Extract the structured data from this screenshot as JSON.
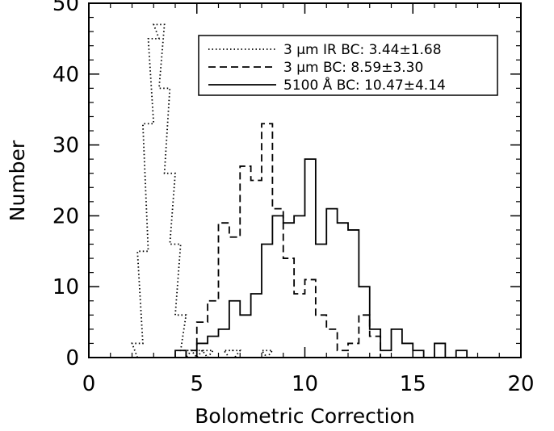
{
  "chart_data": {
    "type": "histogram",
    "xlabel": "Bolometric Correction",
    "ylabel": "Number",
    "xlim": [
      0,
      20
    ],
    "ylim": [
      0,
      50
    ],
    "xticks": [
      0,
      5,
      10,
      15,
      20
    ],
    "yticks": [
      0,
      10,
      20,
      30,
      40,
      50
    ],
    "bin_width": 0.5,
    "legend_position": "top-right",
    "series": [
      {
        "name": "3 μm IR BC: 3.44±1.68",
        "line_style": "dotted",
        "bin_starts": [
          1.75,
          2.0,
          2.25,
          2.5,
          2.75,
          3.0,
          3.25,
          3.5,
          3.75,
          4.0,
          4.25,
          4.5,
          4.75,
          5.0,
          5.25,
          5.5,
          5.75,
          6.0,
          6.25,
          6.5,
          6.75,
          7.0,
          7.25,
          7.5,
          7.75,
          8.0,
          8.25
        ],
        "values": [
          0,
          2,
          15,
          33,
          45,
          47,
          38,
          26,
          16,
          6,
          1,
          0,
          1,
          0,
          1,
          0,
          0,
          0,
          1,
          1,
          0,
          0,
          0,
          0,
          0,
          1,
          0
        ]
      },
      {
        "name": "3 μm BC: 8.59±3.30",
        "line_style": "dashed",
        "bin_starts": [
          4.0,
          4.5,
          5.0,
          5.5,
          6.0,
          6.5,
          7.0,
          7.5,
          8.0,
          8.5,
          9.0,
          9.5,
          10.0,
          10.5,
          11.0,
          11.5,
          12.0,
          12.5,
          13.0,
          13.5,
          14.0
        ],
        "values": [
          0,
          1,
          5,
          8,
          19,
          17,
          27,
          25,
          33,
          21,
          14,
          9,
          11,
          6,
          4,
          1,
          2,
          6,
          3,
          0,
          0
        ]
      },
      {
        "name": "5100 Å BC: 10.47±4.14",
        "line_style": "solid",
        "bin_starts": [
          4.0,
          4.5,
          5.0,
          5.5,
          6.0,
          6.5,
          7.0,
          7.5,
          8.0,
          8.5,
          9.0,
          9.5,
          10.0,
          10.5,
          11.0,
          11.5,
          12.0,
          12.5,
          13.0,
          13.5,
          14.0,
          14.5,
          15.0,
          15.5,
          16.0,
          16.5,
          17.0,
          17.5
        ],
        "values": [
          1,
          0,
          2,
          3,
          4,
          8,
          6,
          9,
          16,
          20,
          19,
          20,
          28,
          16,
          21,
          19,
          18,
          10,
          4,
          1,
          4,
          2,
          1,
          0,
          2,
          0,
          1,
          0
        ]
      }
    ]
  }
}
